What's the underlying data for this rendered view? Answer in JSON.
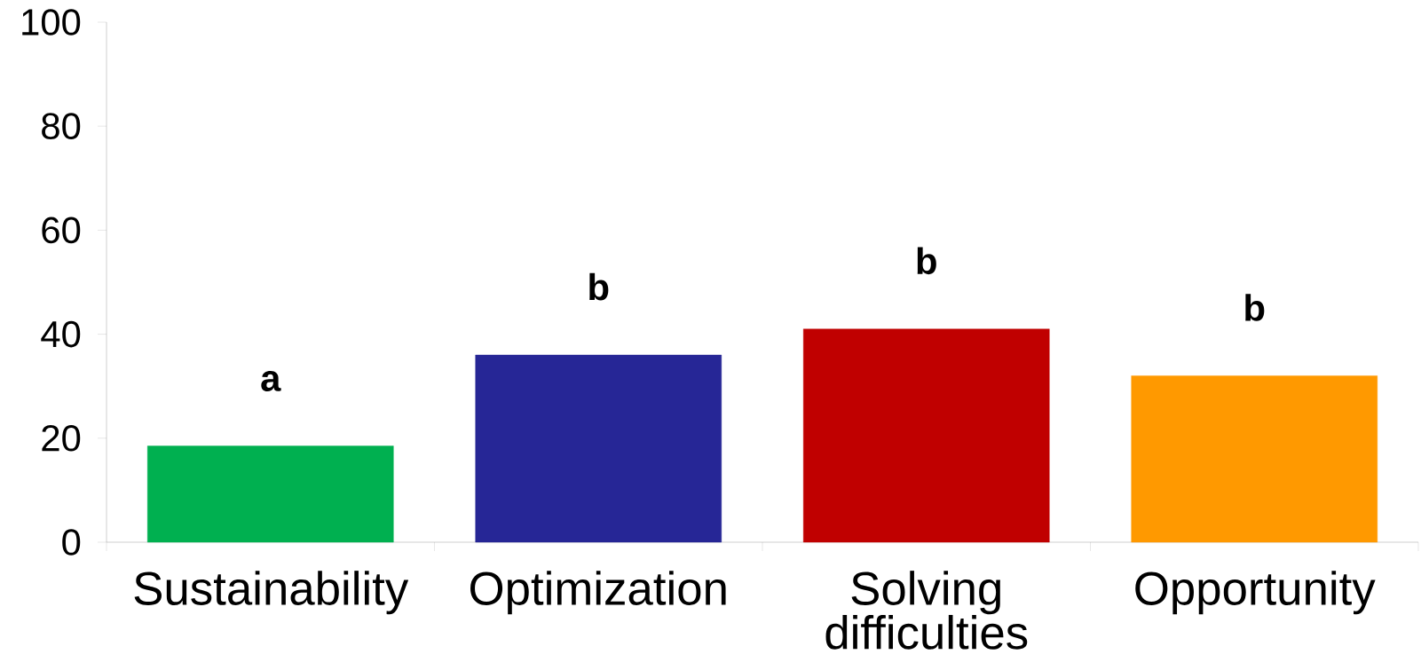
{
  "chart_data": {
    "type": "bar",
    "categories": [
      "Sustainability",
      "Optimization",
      "Solving difficulties",
      "Opportunity"
    ],
    "values": [
      18.5,
      36,
      41,
      32
    ],
    "colors": [
      "#00b050",
      "#262696",
      "#c00000",
      "#ff9900"
    ],
    "ylim": [
      0,
      100
    ],
    "yticks": [
      0,
      20,
      40,
      60,
      80,
      100
    ],
    "grid": false,
    "annotations": [
      "a",
      "b",
      "b",
      "b"
    ]
  }
}
